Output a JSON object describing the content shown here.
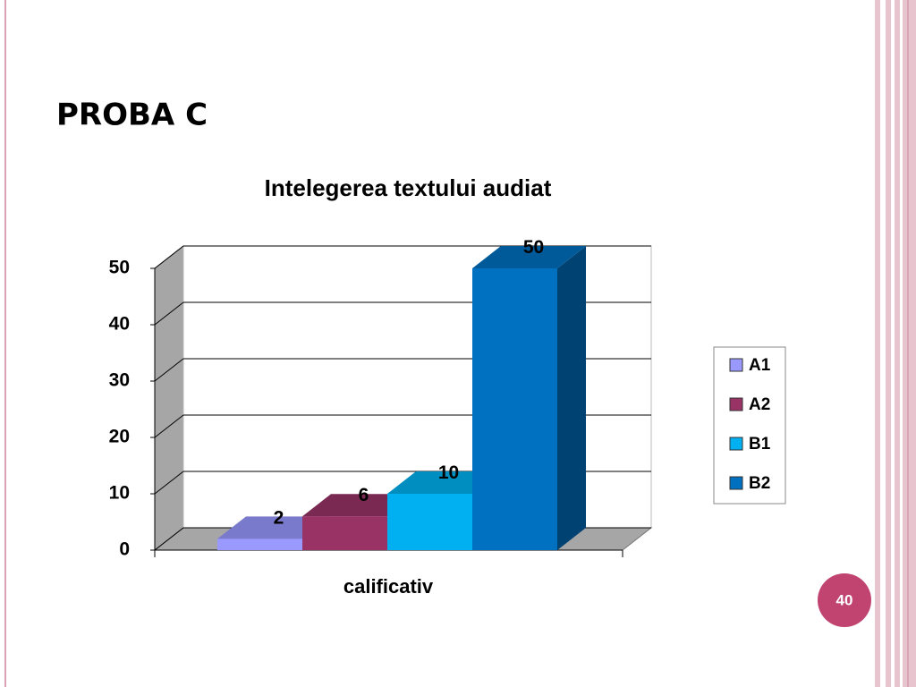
{
  "slide_title": "PROBA C",
  "page_number": 40,
  "chart_data": {
    "type": "bar",
    "title": "Intelegerea textului audiat",
    "x_label": "calificativ",
    "categories": [
      "calificativ"
    ],
    "series": [
      {
        "name": "A1",
        "color": "#9999ff",
        "values": [
          2
        ]
      },
      {
        "name": "A2",
        "color": "#993366",
        "values": [
          6
        ]
      },
      {
        "name": "B1",
        "color": "#00b0f0",
        "values": [
          10
        ]
      },
      {
        "name": "B2",
        "color": "#0070c0",
        "values": [
          50
        ]
      }
    ],
    "ylim": [
      0,
      50
    ],
    "yticks": [
      0,
      10,
      20,
      30,
      40,
      50
    ],
    "grid": true,
    "legend": "right"
  }
}
